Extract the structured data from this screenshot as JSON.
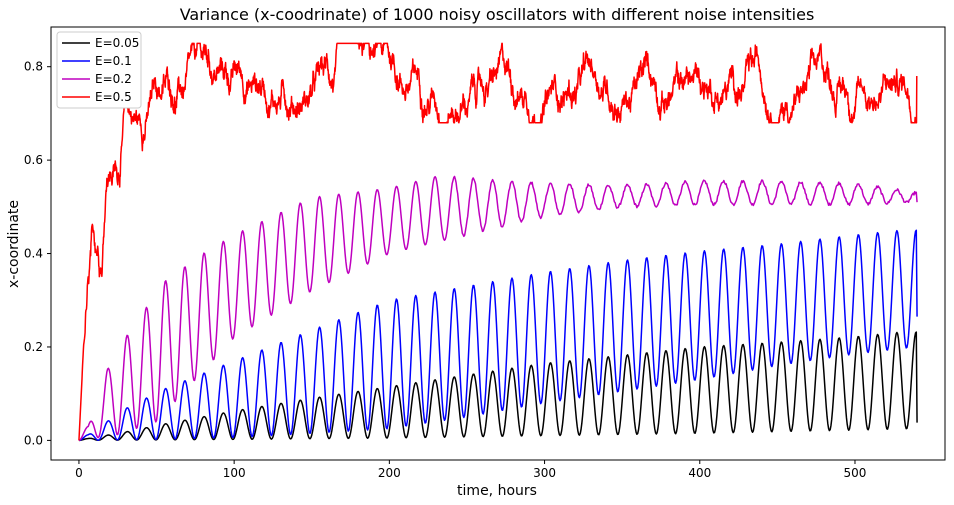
{
  "chart_data": {
    "type": "line",
    "title": "Variance (x-coodrinate) of 1000 noisy oscillators with different noise intensities",
    "xlabel": "time, hours",
    "ylabel": "x-coordinate",
    "xlim": [
      -18,
      558
    ],
    "ylim": [
      -0.042,
      0.885
    ],
    "xticks": [
      0,
      100,
      200,
      300,
      400,
      500
    ],
    "yticks": [
      0.0,
      0.2,
      0.4,
      0.6,
      0.8
    ],
    "xtick_labels": [
      "0",
      "100",
      "200",
      "300",
      "400",
      "500"
    ],
    "ytick_labels": [
      "0.0",
      "0.2",
      "0.4",
      "0.6",
      "0.8"
    ],
    "grid": false,
    "legend_position": "top-left",
    "x_range": [
      0,
      540
    ],
    "period_hours": 12.4,
    "series": [
      {
        "name": "E=0.05",
        "color": "#000000",
        "pattern": "oscillating",
        "peaks": [
          [
            6,
            0.004
          ],
          [
            18,
            0.011
          ],
          [
            30,
            0.018
          ],
          [
            55,
            0.035
          ],
          [
            100,
            0.063
          ],
          [
            150,
            0.09
          ],
          [
            200,
            0.115
          ],
          [
            250,
            0.14
          ],
          [
            300,
            0.165
          ],
          [
            350,
            0.182
          ],
          [
            400,
            0.2
          ],
          [
            450,
            0.21
          ],
          [
            500,
            0.222
          ],
          [
            530,
            0.232
          ]
        ],
        "troughs": [
          [
            0,
            0.0
          ],
          [
            100,
            0.002
          ],
          [
            200,
            0.005
          ],
          [
            300,
            0.01
          ],
          [
            400,
            0.015
          ],
          [
            500,
            0.022
          ],
          [
            540,
            0.025
          ]
        ],
        "end_value": 0.038
      },
      {
        "name": "E=0.1",
        "color": "#0000ff",
        "pattern": "oscillating",
        "peaks": [
          [
            6,
            0.012
          ],
          [
            18,
            0.04
          ],
          [
            30,
            0.068
          ],
          [
            55,
            0.11
          ],
          [
            100,
            0.17
          ],
          [
            150,
            0.236
          ],
          [
            200,
            0.3
          ],
          [
            250,
            0.33
          ],
          [
            300,
            0.36
          ],
          [
            350,
            0.385
          ],
          [
            400,
            0.405
          ],
          [
            450,
            0.42
          ],
          [
            500,
            0.44
          ],
          [
            530,
            0.45
          ]
        ],
        "troughs": [
          [
            0,
            0.0
          ],
          [
            50,
            0.002
          ],
          [
            100,
            0.006
          ],
          [
            150,
            0.015
          ],
          [
            200,
            0.025
          ],
          [
            250,
            0.05
          ],
          [
            300,
            0.08
          ],
          [
            350,
            0.105
          ],
          [
            400,
            0.13
          ],
          [
            450,
            0.16
          ],
          [
            500,
            0.185
          ],
          [
            540,
            0.2
          ]
        ],
        "end_value": 0.265
      },
      {
        "name": "E=0.2",
        "color": "#bf00bf",
        "pattern": "damped-oscillating",
        "peaks": [
          [
            6,
            0.03
          ],
          [
            18,
            0.15
          ],
          [
            30,
            0.22
          ],
          [
            55,
            0.34
          ],
          [
            80,
            0.4
          ],
          [
            100,
            0.44
          ],
          [
            150,
            0.52
          ],
          [
            200,
            0.54
          ],
          [
            230,
            0.565
          ],
          [
            300,
            0.55
          ],
          [
            350,
            0.545
          ],
          [
            400,
            0.555
          ],
          [
            450,
            0.555
          ],
          [
            500,
            0.55
          ],
          [
            540,
            0.53
          ]
        ],
        "troughs": [
          [
            0,
            0.0
          ],
          [
            25,
            0.012
          ],
          [
            50,
            0.04
          ],
          [
            100,
            0.22
          ],
          [
            150,
            0.32
          ],
          [
            200,
            0.4
          ],
          [
            250,
            0.44
          ],
          [
            300,
            0.48
          ],
          [
            350,
            0.5
          ],
          [
            400,
            0.505
          ],
          [
            450,
            0.505
          ],
          [
            500,
            0.505
          ],
          [
            540,
            0.51
          ]
        ],
        "end_value": 0.51
      },
      {
        "name": "E=0.5",
        "color": "#ff0000",
        "pattern": "noisy-saturating",
        "levels": [
          [
            0,
            0.0
          ],
          [
            3,
            0.2
          ],
          [
            8,
            0.34
          ],
          [
            15,
            0.38
          ],
          [
            18,
            0.6
          ],
          [
            25,
            0.6
          ],
          [
            30,
            0.72
          ],
          [
            40,
            0.68
          ],
          [
            50,
            0.75
          ],
          [
            70,
            0.76
          ],
          [
            100,
            0.77
          ],
          [
            150,
            0.77
          ],
          [
            200,
            0.765
          ],
          [
            250,
            0.765
          ],
          [
            300,
            0.76
          ],
          [
            350,
            0.765
          ],
          [
            400,
            0.765
          ],
          [
            450,
            0.762
          ],
          [
            500,
            0.76
          ],
          [
            540,
            0.77
          ]
        ],
        "max_value": 0.85,
        "min_value_after_60h": 0.68,
        "end_value": 0.78
      }
    ]
  }
}
